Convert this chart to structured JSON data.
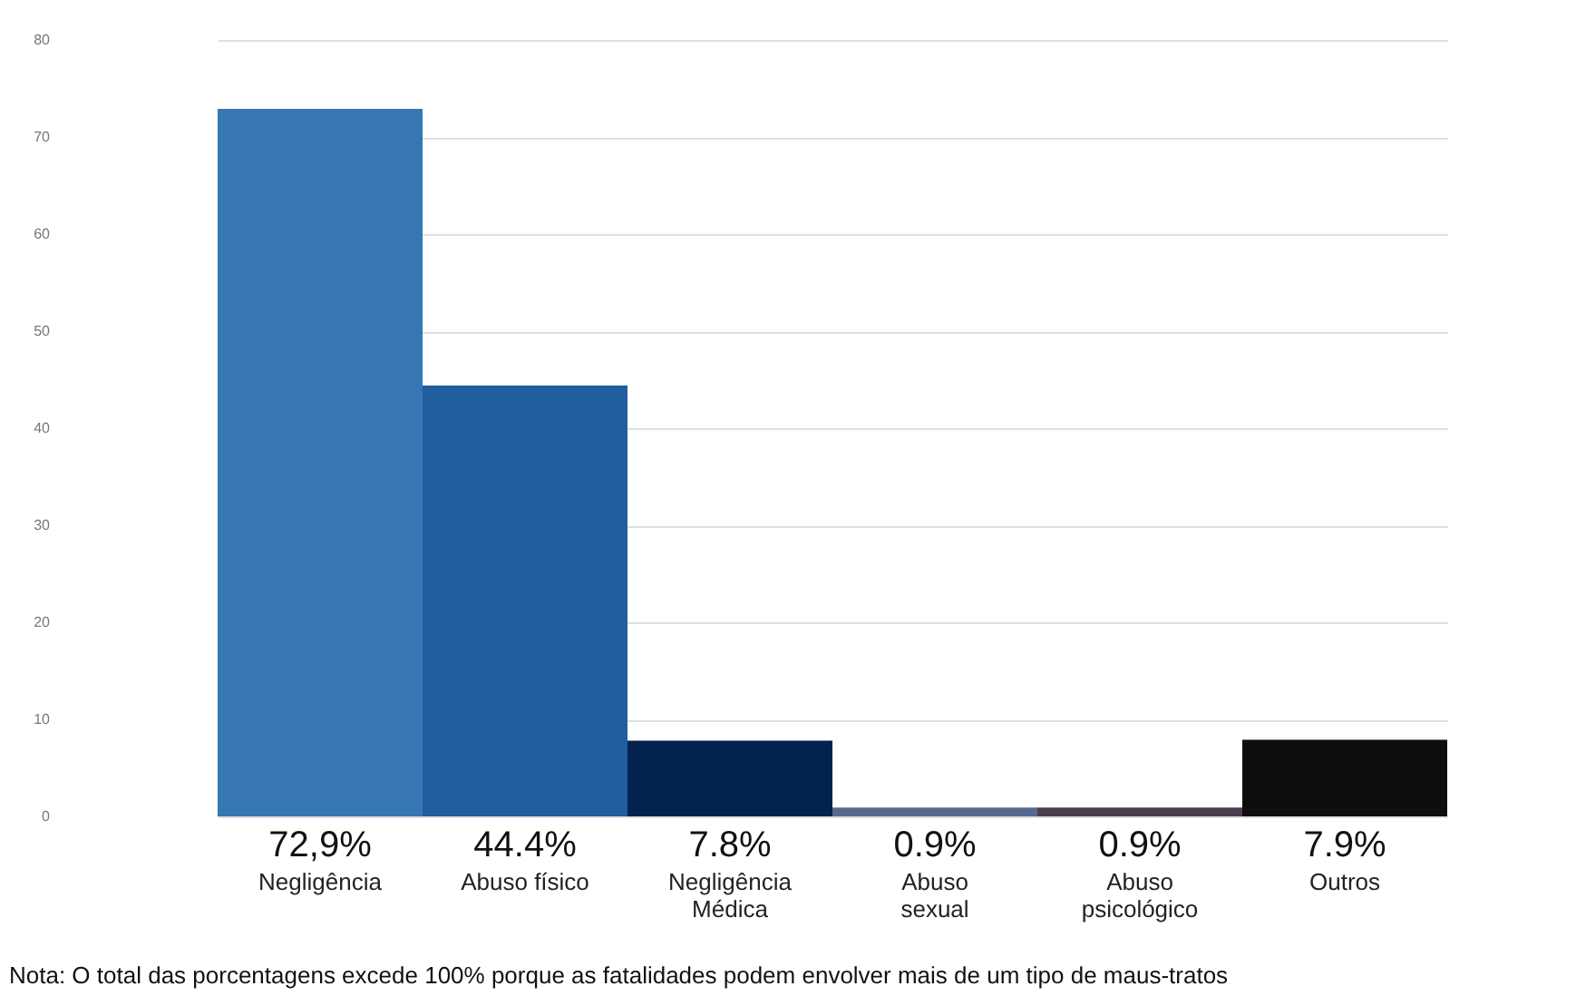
{
  "chart_data": {
    "type": "bar",
    "categories": [
      "Negligência",
      "Abuso físico",
      "Negligência\nMédica",
      "Abuso\nsexual",
      "Abuso\npsicológico",
      "Outros"
    ],
    "values": [
      72.9,
      44.4,
      7.8,
      0.9,
      0.9,
      7.9
    ],
    "value_labels": [
      "72,9%",
      "44.4%",
      "7.8%",
      "0.9%",
      "0.9%",
      "7.9%"
    ],
    "colors": [
      "#3676b2",
      "#205e9d",
      "#03234f",
      "#566a90",
      "#4a3e4e",
      "#0e0e0e"
    ],
    "ylim": [
      0,
      80
    ],
    "yticks": [
      0,
      10,
      20,
      30,
      40,
      50,
      60,
      70,
      80
    ],
    "grid": "y",
    "annotations": [
      "Nota: O total das porcentagens excede 100% porque as fatalidades podem envolver mais de um tipo de maus-tratos"
    ]
  }
}
